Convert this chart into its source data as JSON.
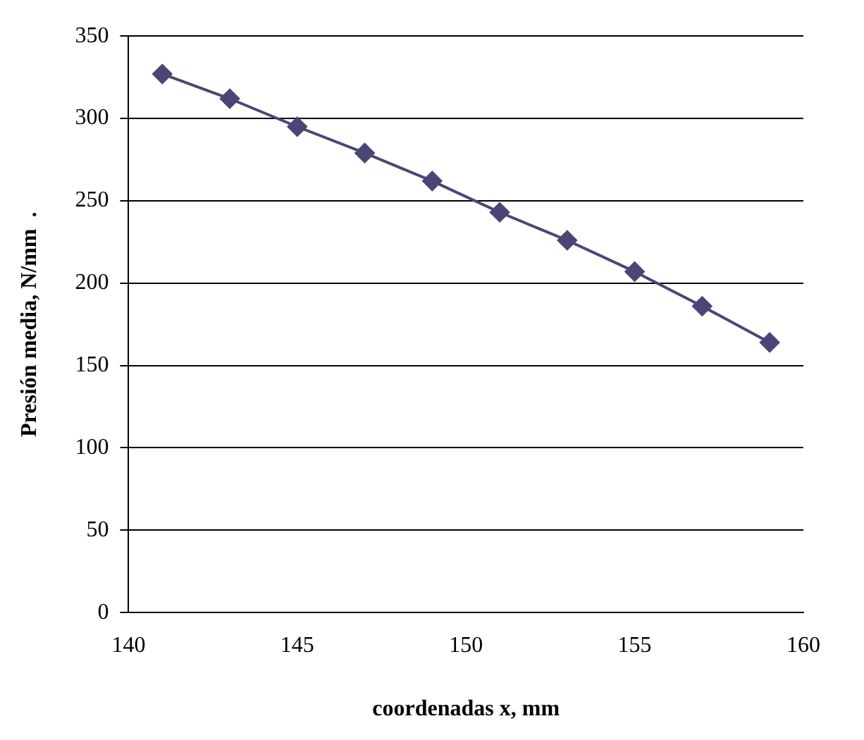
{
  "chart_data": {
    "type": "line",
    "xlabel": "coordenadas x, mm",
    "ylabel": "Presión media, N/mm  .",
    "x": [
      141,
      143,
      145,
      147,
      149,
      151,
      153,
      155,
      157,
      159
    ],
    "series": [
      {
        "color": "#4a4675",
        "values": [
          327,
          312,
          295,
          279,
          262,
          243,
          226,
          207,
          186,
          164
        ]
      }
    ],
    "xlim": [
      140,
      160
    ],
    "xticks": [
      140,
      145,
      150,
      155,
      160
    ],
    "ylim": [
      0,
      350
    ],
    "yticks": [
      0,
      50,
      100,
      150,
      200,
      250,
      300,
      350
    ],
    "grid": "y",
    "legend": false,
    "marker": "diamond",
    "line_style": "solid"
  }
}
